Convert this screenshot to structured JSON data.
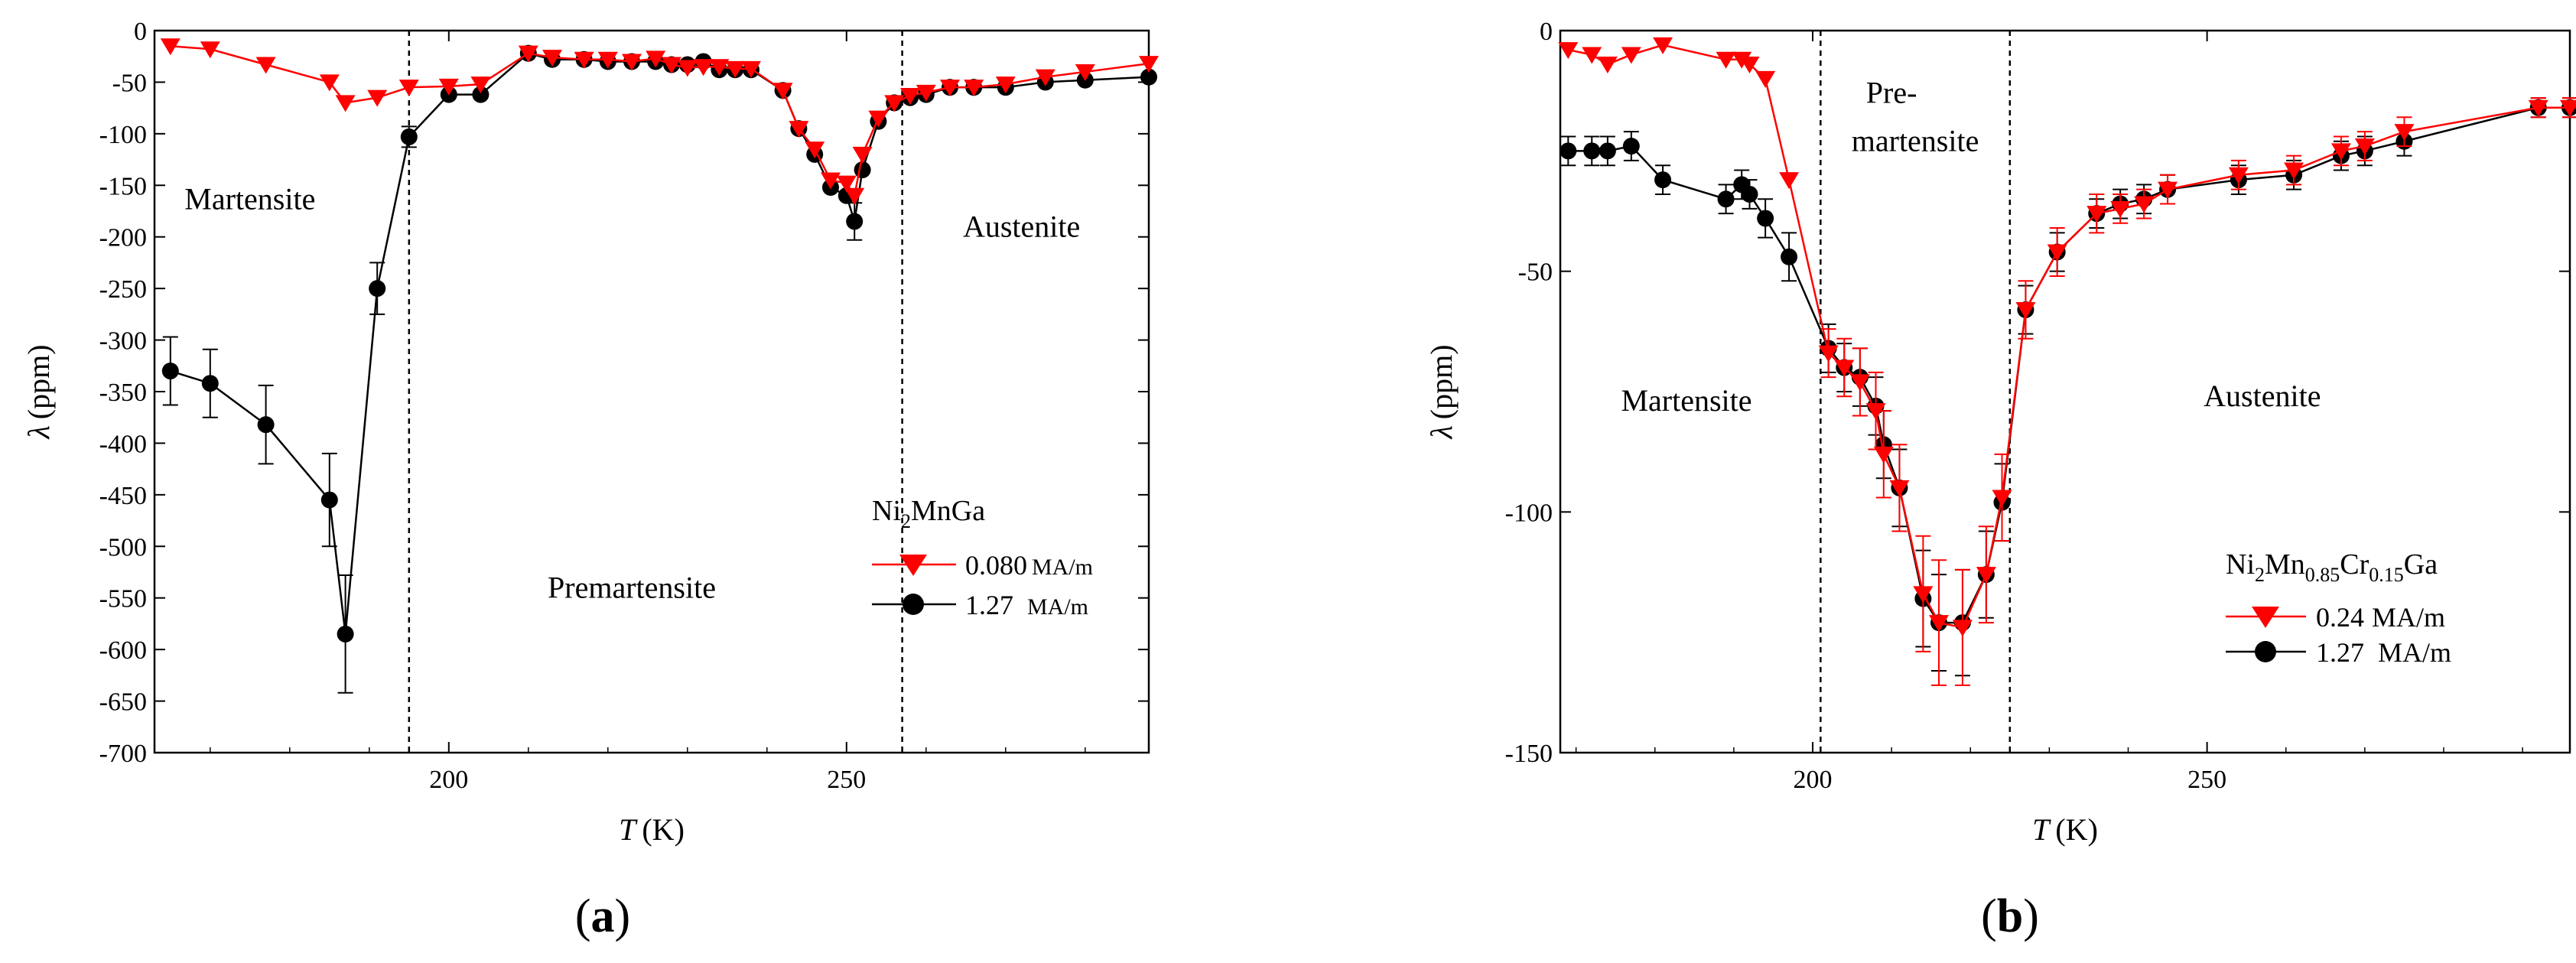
{
  "colors": {
    "red_series": "#ff0000",
    "black_series": "#000000",
    "frame": "#000000"
  },
  "chart_data": [
    {
      "type": "line",
      "panel_label": "a",
      "xlabel_var": "T",
      "xlabel_unit": "(K)",
      "ylabel_var": "λ",
      "ylabel_unit": "(ppm)",
      "xlim": [
        163,
        288
      ],
      "ylim": [
        -700,
        0
      ],
      "xticks": [
        200,
        250
      ],
      "xtick_labels": [
        "200",
        "250"
      ],
      "yticks": [
        0,
        -50,
        -100,
        -150,
        -200,
        -250,
        -300,
        -350,
        -400,
        -450,
        -500,
        -550,
        -600,
        -650,
        -700
      ],
      "ytick_labels": [
        "0",
        "-50",
        "-100",
        "-150",
        "-200",
        "-250",
        "-300",
        "-350",
        "-400",
        "-450",
        "-500",
        "-550",
        "-600",
        "-650",
        "-700"
      ],
      "vlines": [
        195,
        257
      ],
      "regions": [
        {
          "text": "Martensite",
          "x": 175,
          "y": -173
        },
        {
          "text": "Premartensite",
          "x": 223,
          "y": -550
        },
        {
          "text": "Austenite",
          "x": 272,
          "y": -200
        }
      ],
      "legend": {
        "title_parts": [
          "Ni",
          "2",
          "MnGa"
        ],
        "entries": [
          {
            "value": "0.080",
            "unit": "MA/m",
            "marker": "triangle-down",
            "color": "#ff0000"
          },
          {
            "value": "1.27",
            "unit": "MA/m",
            "marker": "circle",
            "color": "#000000"
          }
        ]
      },
      "series": [
        {
          "name": "0.080 MA/m",
          "color": "#ff0000",
          "marker": "triangle-down",
          "x": [
            165,
            170,
            177,
            185,
            187,
            191,
            195,
            200,
            204,
            210,
            213,
            217,
            220,
            223,
            226,
            228,
            230,
            232,
            234,
            236,
            238,
            242,
            244,
            246,
            248,
            250,
            251,
            252,
            254,
            256,
            258,
            260,
            263,
            266,
            270,
            275,
            280,
            288
          ],
          "y": [
            -15,
            -18,
            -33,
            -50,
            -70,
            -65,
            -55,
            -54,
            -52,
            -22,
            -26,
            -28,
            -28,
            -30,
            -27,
            -33,
            -36,
            -35,
            -35,
            -37,
            -37,
            -58,
            -95,
            -115,
            -145,
            -148,
            -160,
            -120,
            -85,
            -70,
            -63,
            -60,
            -55,
            -55,
            -52,
            -45,
            -40,
            -32
          ]
        },
        {
          "name": "1.27 MA/m",
          "color": "#000000",
          "marker": "circle",
          "x": [
            165,
            170,
            177,
            185,
            187,
            191,
            195,
            200,
            204,
            210,
            213,
            217,
            220,
            223,
            226,
            228,
            230,
            232,
            234,
            236,
            238,
            242,
            244,
            246,
            248,
            250,
            251,
            252,
            254,
            256,
            258,
            260,
            263,
            266,
            270,
            275,
            280,
            288
          ],
          "y": [
            -330,
            -342,
            -382,
            -455,
            -585,
            -250,
            -103,
            -62,
            -62,
            -22,
            -28,
            -28,
            -30,
            -30,
            -30,
            -33,
            -33,
            -30,
            -38,
            -38,
            -38,
            -58,
            -95,
            -120,
            -152,
            -160,
            -185,
            -135,
            -88,
            -70,
            -65,
            -62,
            -55,
            -55,
            -55,
            -50,
            -48,
            -45
          ]
        },
        {
          "name": "1.27 MA/m error",
          "is_error": true,
          "x": [
            165,
            170,
            177,
            185,
            187,
            191,
            195,
            251
          ],
          "err": [
            33,
            33,
            38,
            45,
            57,
            25,
            10,
            18
          ]
        }
      ]
    },
    {
      "type": "line",
      "panel_label": "b",
      "xlabel_var": "T",
      "xlabel_unit": "(K)",
      "ylabel_var": "λ",
      "ylabel_unit": "(ppm)",
      "xlim": [
        168,
        296
      ],
      "ylim": [
        -150,
        0
      ],
      "xticks": [
        200,
        250
      ],
      "xtick_labels": [
        "200",
        "250"
      ],
      "yticks": [
        0,
        -50,
        -100,
        -150
      ],
      "ytick_labels": [
        "0",
        "-50",
        "-100",
        "-150"
      ],
      "vlines": [
        201,
        225
      ],
      "regions": [
        {
          "text": "Martensite",
          "x": 184,
          "y": -79
        },
        {
          "text": "Pre-",
          "x": 210,
          "y": -15
        },
        {
          "text": "martensite",
          "x": 213,
          "y": -25
        },
        {
          "text": "Austenite",
          "x": 257,
          "y": -78
        }
      ],
      "legend": {
        "title_parts": [
          "Ni",
          "2",
          "Mn",
          "0.85",
          "Cr",
          "0.15",
          "Ga"
        ],
        "entries": [
          {
            "value": "0.24",
            "unit": "MA/m",
            "marker": "triangle-down",
            "color": "#ff0000"
          },
          {
            "value": "1.27",
            "unit": "MA/m",
            "marker": "circle",
            "color": "#000000"
          }
        ]
      },
      "series": [
        {
          "name": "0.24 MA/m",
          "color": "#ff0000",
          "marker": "triangle-down",
          "x": [
            169,
            172,
            174,
            177,
            181,
            189,
            191,
            192,
            194,
            197,
            202,
            204,
            206,
            208,
            209,
            211,
            214,
            216,
            219,
            222,
            224,
            227,
            231,
            236,
            239,
            242,
            245,
            254,
            261,
            267,
            270,
            275,
            292,
            296
          ],
          "y": [
            -4,
            -5,
            -7,
            -5,
            -3,
            -6,
            -6,
            -7,
            -10,
            -31,
            -67,
            -70,
            -73,
            -79,
            -88,
            -95,
            -117,
            -123,
            -124,
            -113,
            -97,
            -58,
            -46,
            -38,
            -37,
            -36,
            -33,
            -30,
            -29,
            -25,
            -24,
            -21,
            -16,
            -16
          ],
          "err": [
            0,
            0,
            0,
            0,
            0,
            0,
            0,
            0,
            0,
            0,
            5,
            6,
            7,
            8,
            9,
            9,
            12,
            13,
            12,
            10,
            9,
            6,
            5,
            4,
            3,
            3,
            3,
            3,
            3,
            3,
            3,
            3,
            2,
            2
          ]
        },
        {
          "name": "1.27 MA/m",
          "color": "#000000",
          "marker": "circle",
          "x": [
            169,
            172,
            174,
            177,
            181,
            189,
            191,
            192,
            194,
            197,
            202,
            204,
            206,
            208,
            209,
            211,
            214,
            216,
            219,
            222,
            224,
            227,
            231,
            236,
            239,
            242,
            245,
            254,
            261,
            267,
            270,
            275,
            292,
            296
          ],
          "y": [
            -25,
            -25,
            -25,
            -24,
            -31,
            -35,
            -32,
            -34,
            -39,
            -47,
            -66,
            -70,
            -72,
            -78,
            -86,
            -95,
            -118,
            -123,
            -123,
            -113,
            -98,
            -58,
            -46,
            -38,
            -36,
            -35,
            -33,
            -31,
            -30,
            -26,
            -25,
            -23,
            -16,
            -16
          ],
          "err": [
            3,
            3,
            3,
            3,
            3,
            3,
            3,
            3,
            4,
            5,
            5,
            5,
            6,
            6,
            7,
            8,
            10,
            10,
            11,
            9,
            8,
            5,
            4,
            3,
            3,
            3,
            3,
            3,
            3,
            3,
            3,
            3,
            2,
            2
          ]
        }
      ]
    }
  ]
}
